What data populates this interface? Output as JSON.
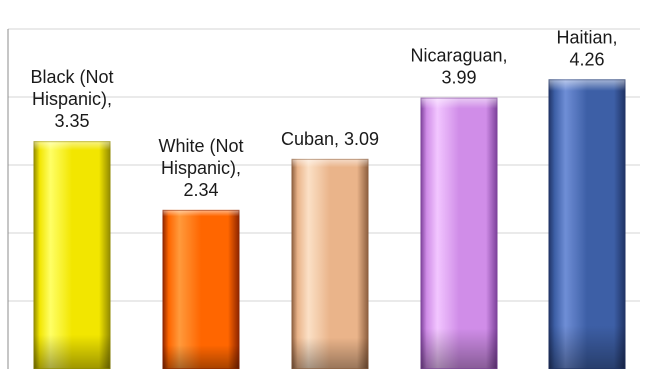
{
  "chart_data": {
    "type": "bar",
    "categories": [
      "Black (Not Hispanic)",
      "White (Not Hispanic)",
      "Cuban",
      "Nicaraguan",
      "Haitian"
    ],
    "values": [
      3.35,
      2.34,
      3.09,
      3.99,
      4.26
    ],
    "data_labels": [
      [
        "Black (Not",
        "Hispanic),",
        "3.35"
      ],
      [
        "White (Not",
        "Hispanic),",
        "2.34"
      ],
      [
        "Cuban, 3.09"
      ],
      [
        "Nicaraguan,",
        "3.99"
      ],
      [
        "Haitian,",
        "4.26"
      ]
    ],
    "colors": [
      {
        "light": "#ffff66",
        "base": "#f2e600",
        "dark": "#8f8700"
      },
      {
        "light": "#ff9a3c",
        "base": "#ff6600",
        "dark": "#8a2300"
      },
      {
        "light": "#fbe0c6",
        "base": "#eab48a",
        "dark": "#8a5c3c"
      },
      {
        "light": "#f2c6ff",
        "base": "#d08de8",
        "dark": "#7a3f98"
      },
      {
        "light": "#6f8ed6",
        "base": "#3d5fa6",
        "dark": "#1f3263"
      }
    ],
    "ylim": [
      0,
      5
    ],
    "grid": true,
    "legend": false
  }
}
